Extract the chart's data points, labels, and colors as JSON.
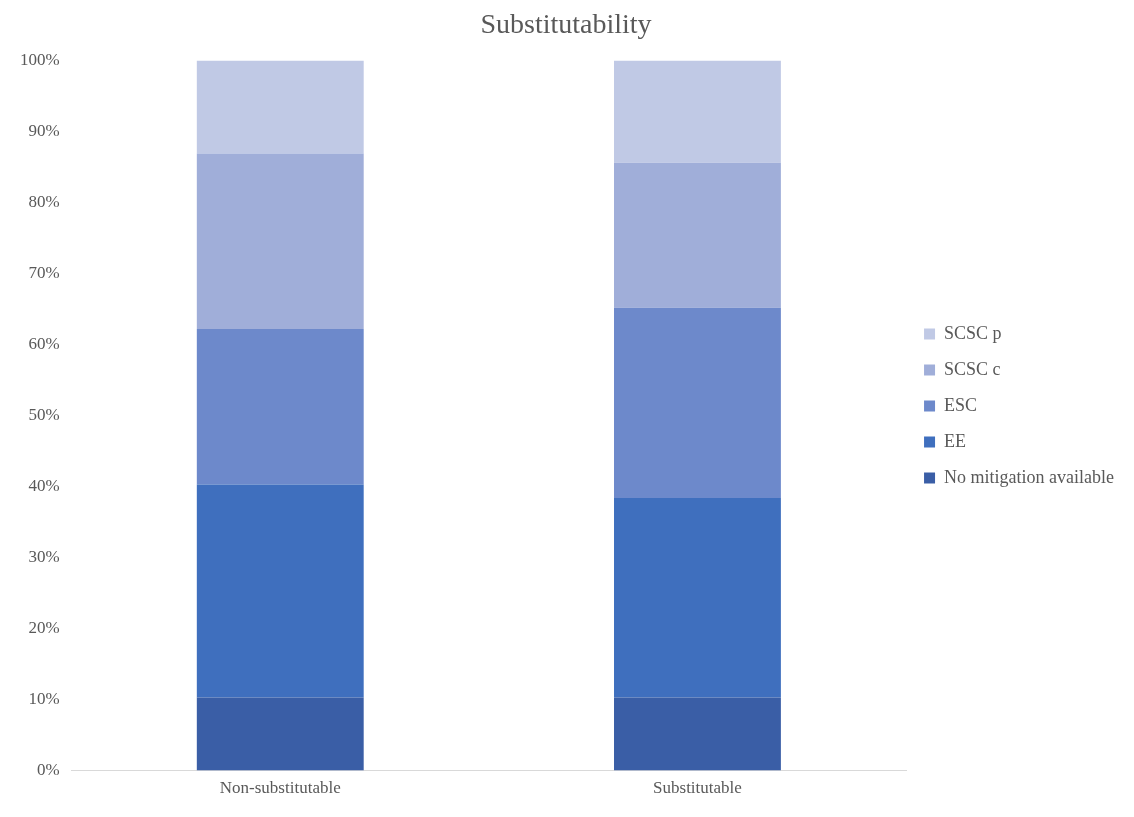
{
  "chart_data": {
    "type": "bar",
    "title": "Substitutability",
    "stacked": true,
    "categories": [
      "Non-substitutable",
      "Substitutable"
    ],
    "series": [
      {
        "name": "No mitigation available",
        "color": "#3a5ea6",
        "values": [
          10.3,
          10.3
        ]
      },
      {
        "name": "EE",
        "color": "#3f6fbe",
        "values": [
          30.0,
          28.1
        ]
      },
      {
        "name": "ESC",
        "color": "#6d89cb",
        "values": [
          21.9,
          26.8
        ]
      },
      {
        "name": "SCSC c",
        "color": "#a0aed9",
        "values": [
          24.7,
          20.4
        ]
      },
      {
        "name": "SCSC p",
        "color": "#c0c9e5",
        "values": [
          13.1,
          14.4
        ]
      }
    ],
    "ylim": [
      0,
      100
    ],
    "yticks": [
      {
        "value": 0,
        "label": "0%"
      },
      {
        "value": 10,
        "label": "10%"
      },
      {
        "value": 20,
        "label": "20%"
      },
      {
        "value": 30,
        "label": "30%"
      },
      {
        "value": 40,
        "label": "40%"
      },
      {
        "value": 50,
        "label": "50%"
      },
      {
        "value": 60,
        "label": "60%"
      },
      {
        "value": 70,
        "label": "70%"
      },
      {
        "value": 80,
        "label": "80%"
      },
      {
        "value": 90,
        "label": "90%"
      },
      {
        "value": 100,
        "label": "100%"
      }
    ],
    "grid": false,
    "legend": "right"
  }
}
